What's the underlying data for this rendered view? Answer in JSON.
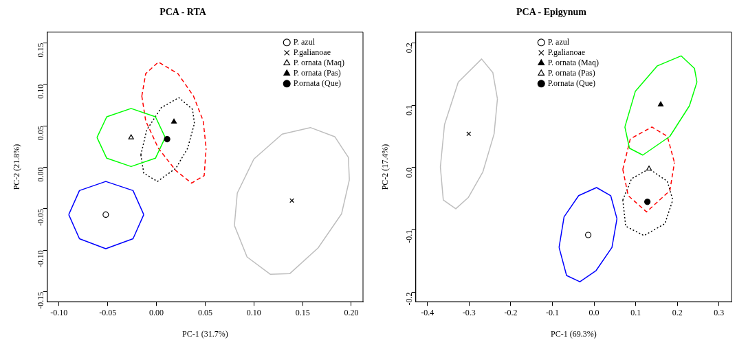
{
  "chart_data": [
    {
      "type": "scatter",
      "title": "PCA - RTA",
      "xlabel": "PC-1 (31.7%)",
      "ylabel": "PC-2 (21.8%)",
      "legend": "top right",
      "grid": false,
      "xlim": [
        -0.112,
        0.212
      ],
      "ylim": [
        -0.162,
        0.163
      ],
      "xticks": [
        {
          "value": -0.1,
          "label": "-0.10"
        },
        {
          "value": -0.05,
          "label": "-0.05"
        },
        {
          "value": 0,
          "label": "0.00"
        },
        {
          "value": 0.05,
          "label": "0.05"
        },
        {
          "value": 0.1,
          "label": "0.10"
        },
        {
          "value": 0.15,
          "label": "0.15"
        },
        {
          "value": 0.2,
          "label": "0.20"
        }
      ],
      "yticks": [
        {
          "value": -0.15,
          "label": "-0.15"
        },
        {
          "value": -0.1,
          "label": "-0.10"
        },
        {
          "value": -0.05,
          "label": "-0.05"
        },
        {
          "value": 0,
          "label": "0.00"
        },
        {
          "value": 0.05,
          "label": "0.05"
        },
        {
          "value": 0.1,
          "label": "0.10"
        },
        {
          "value": 0.15,
          "label": "0.15"
        }
      ],
      "series": [
        {
          "name": "P. azul",
          "color": "#000000",
          "colors": [
            "#ffffff"
          ],
          "marker": "circle",
          "x": [
            -0.052
          ],
          "values": [
            -0.057
          ]
        },
        {
          "name": "P.galianoae",
          "color": "#000000",
          "marker": "cross",
          "x": [
            0.139
          ],
          "values": [
            -0.04
          ]
        },
        {
          "name": "P. ornata (Maq)",
          "color": "#000000",
          "colors": [
            "#ffffff"
          ],
          "marker": "triangle",
          "x": [
            -0.026
          ],
          "values": [
            0.036
          ]
        },
        {
          "name": "P. ornata (Pas)",
          "color": "#000000",
          "marker": "triangle",
          "x": [
            0.018
          ],
          "values": [
            0.055
          ]
        },
        {
          "name": "P.ornata (Que)",
          "color": "#000000",
          "marker": "circle",
          "x": [
            0.011
          ],
          "values": [
            0.034
          ]
        },
        {
          "type": "line",
          "color": "#0000ff",
          "line_style": "solid",
          "x": [
            -0.09,
            -0.079,
            -0.052,
            -0.024,
            -0.013,
            null,
            -0.09,
            -0.079,
            -0.052,
            -0.024,
            -0.013
          ],
          "values": [
            -0.057,
            -0.028,
            -0.017,
            -0.028,
            -0.057,
            null,
            -0.057,
            -0.086,
            -0.098,
            -0.086,
            -0.057
          ]
        },
        {
          "type": "line",
          "color": "#bebebe",
          "line_style": "solid",
          "x": [
            0.08,
            0.083,
            0.1,
            0.129,
            0.158,
            0.183,
            0.197,
            0.198,
            null,
            0.08,
            0.093,
            0.117,
            0.137,
            0.166,
            0.19,
            0.198
          ],
          "values": [
            -0.07,
            -0.031,
            0.01,
            0.04,
            0.048,
            0.037,
            0.012,
            -0.015,
            null,
            -0.07,
            -0.108,
            -0.129,
            -0.128,
            -0.097,
            -0.056,
            -0.015
          ]
        },
        {
          "type": "line",
          "color": "#00ff00",
          "line_style": "solid",
          "x": [
            -0.061,
            -0.051,
            -0.026,
            -0.001,
            0.009,
            null,
            -0.061,
            -0.051,
            -0.026,
            -0.001,
            0.009
          ],
          "values": [
            0.036,
            0.061,
            0.071,
            0.061,
            0.036,
            null,
            0.036,
            0.011,
            0.001,
            0.011,
            0.036
          ]
        },
        {
          "type": "line",
          "color": "#ff0000",
          "line_style": "dashed",
          "x": [
            -0.015,
            -0.011,
            0.002,
            0.022,
            0.038,
            0.048,
            0.051,
            null,
            -0.015,
            -0.011,
            0.002,
            0.02,
            0.036,
            0.049,
            0.051
          ],
          "values": [
            0.086,
            0.113,
            0.127,
            0.113,
            0.086,
            0.056,
            0.023,
            null,
            0.086,
            0.056,
            0.023,
            -0.004,
            -0.019,
            -0.01,
            0.023
          ]
        },
        {
          "type": "line",
          "color": "#000000",
          "line_style": "dotted",
          "x": [
            -0.016,
            -0.01,
            0.005,
            0.023,
            0.037,
            0.039,
            null,
            -0.016,
            -0.013,
            0.001,
            0.02,
            0.032,
            0.039
          ],
          "values": [
            0.015,
            0.045,
            0.072,
            0.084,
            0.07,
            0.053,
            null,
            0.015,
            -0.007,
            -0.017,
            -0.001,
            0.023,
            0.053
          ]
        }
      ]
    },
    {
      "type": "scatter",
      "title": "PCA - Epigynum",
      "xlabel": "PC-1 (69.3%)",
      "ylabel": "PC-2 (17.4%)",
      "legend": "top",
      "grid": false,
      "xlim": [
        -0.428,
        0.33
      ],
      "ylim": [
        -0.215,
        0.217
      ],
      "xticks": [
        -0.4,
        -0.3,
        -0.2,
        -0.1,
        {
          "value": 0,
          "label": "0.0"
        },
        0.1,
        0.2,
        0.3
      ],
      "yticks": [
        -0.2,
        -0.1,
        {
          "value": 0,
          "label": "0.0"
        },
        0.1,
        0.2
      ],
      "series": [
        {
          "name": "P. azul",
          "color": "#000000",
          "colors": [
            "#ffffff"
          ],
          "marker": "circle",
          "x": [
            -0.014
          ],
          "values": [
            -0.108
          ]
        },
        {
          "name": "P.galianoae",
          "color": "#000000",
          "marker": "cross",
          "x": [
            -0.301
          ],
          "values": [
            0.054
          ]
        },
        {
          "name": "P. ornata (Maq)",
          "color": "#000000",
          "marker": "triangle",
          "x": [
            0.16
          ],
          "values": [
            0.101
          ]
        },
        {
          "name": "P. ornata (Pas)",
          "color": "#000000",
          "colors": [
            "#ffffff"
          ],
          "marker": "triangle",
          "x": [
            0.132
          ],
          "values": [
            -0.002
          ]
        },
        {
          "name": "P.ornata (Que)",
          "color": "#000000",
          "marker": "circle",
          "x": [
            0.128
          ],
          "values": [
            -0.055
          ]
        },
        {
          "type": "line",
          "color": "#0000ff",
          "line_style": "solid",
          "x": [
            -0.084,
            -0.072,
            -0.037,
            0.006,
            0.04,
            0.055,
            null,
            -0.084,
            -0.066,
            -0.034,
            0.005,
            0.043,
            0.055
          ],
          "values": [
            -0.128,
            -0.079,
            -0.045,
            -0.032,
            -0.045,
            -0.082,
            null,
            -0.128,
            -0.173,
            -0.183,
            -0.165,
            -0.128,
            -0.082
          ]
        },
        {
          "type": "line",
          "color": "#bebebe",
          "line_style": "solid",
          "x": [
            -0.369,
            -0.359,
            -0.326,
            -0.27,
            -0.243,
            -0.232,
            null,
            -0.369,
            -0.362,
            -0.332,
            -0.302,
            -0.267,
            -0.24,
            -0.232
          ],
          "values": [
            0.001,
            0.069,
            0.137,
            0.174,
            0.152,
            0.11,
            null,
            0.001,
            -0.052,
            -0.066,
            -0.048,
            -0.007,
            0.054,
            0.11
          ]
        },
        {
          "type": "line",
          "color": "#00ff00",
          "line_style": "solid",
          "x": [
            0.074,
            0.099,
            0.152,
            0.209,
            0.241,
            0.247,
            null,
            0.074,
            0.085,
            0.117,
            0.182,
            0.229,
            0.247
          ],
          "values": [
            0.065,
            0.122,
            0.163,
            0.179,
            0.159,
            0.137,
            null,
            0.065,
            0.031,
            0.02,
            0.05,
            0.099,
            0.137
          ]
        },
        {
          "type": "line",
          "color": "#ff0000",
          "line_style": "dashed",
          "x": [
            0.069,
            0.087,
            0.139,
            0.176,
            0.193,
            null,
            0.069,
            0.082,
            0.126,
            0.182,
            0.193
          ],
          "values": [
            -0.003,
            0.046,
            0.065,
            0.05,
            0.008,
            null,
            -0.003,
            -0.045,
            -0.071,
            -0.037,
            0.008
          ]
        },
        {
          "type": "line",
          "color": "#000000",
          "line_style": "dotted",
          "x": [
            0.069,
            0.09,
            0.132,
            0.176,
            0.189,
            null,
            0.069,
            0.076,
            0.12,
            0.17,
            0.189
          ],
          "values": [
            -0.052,
            -0.018,
            -0.002,
            -0.022,
            -0.052,
            null,
            -0.052,
            -0.094,
            -0.109,
            -0.09,
            -0.052
          ]
        }
      ]
    }
  ]
}
